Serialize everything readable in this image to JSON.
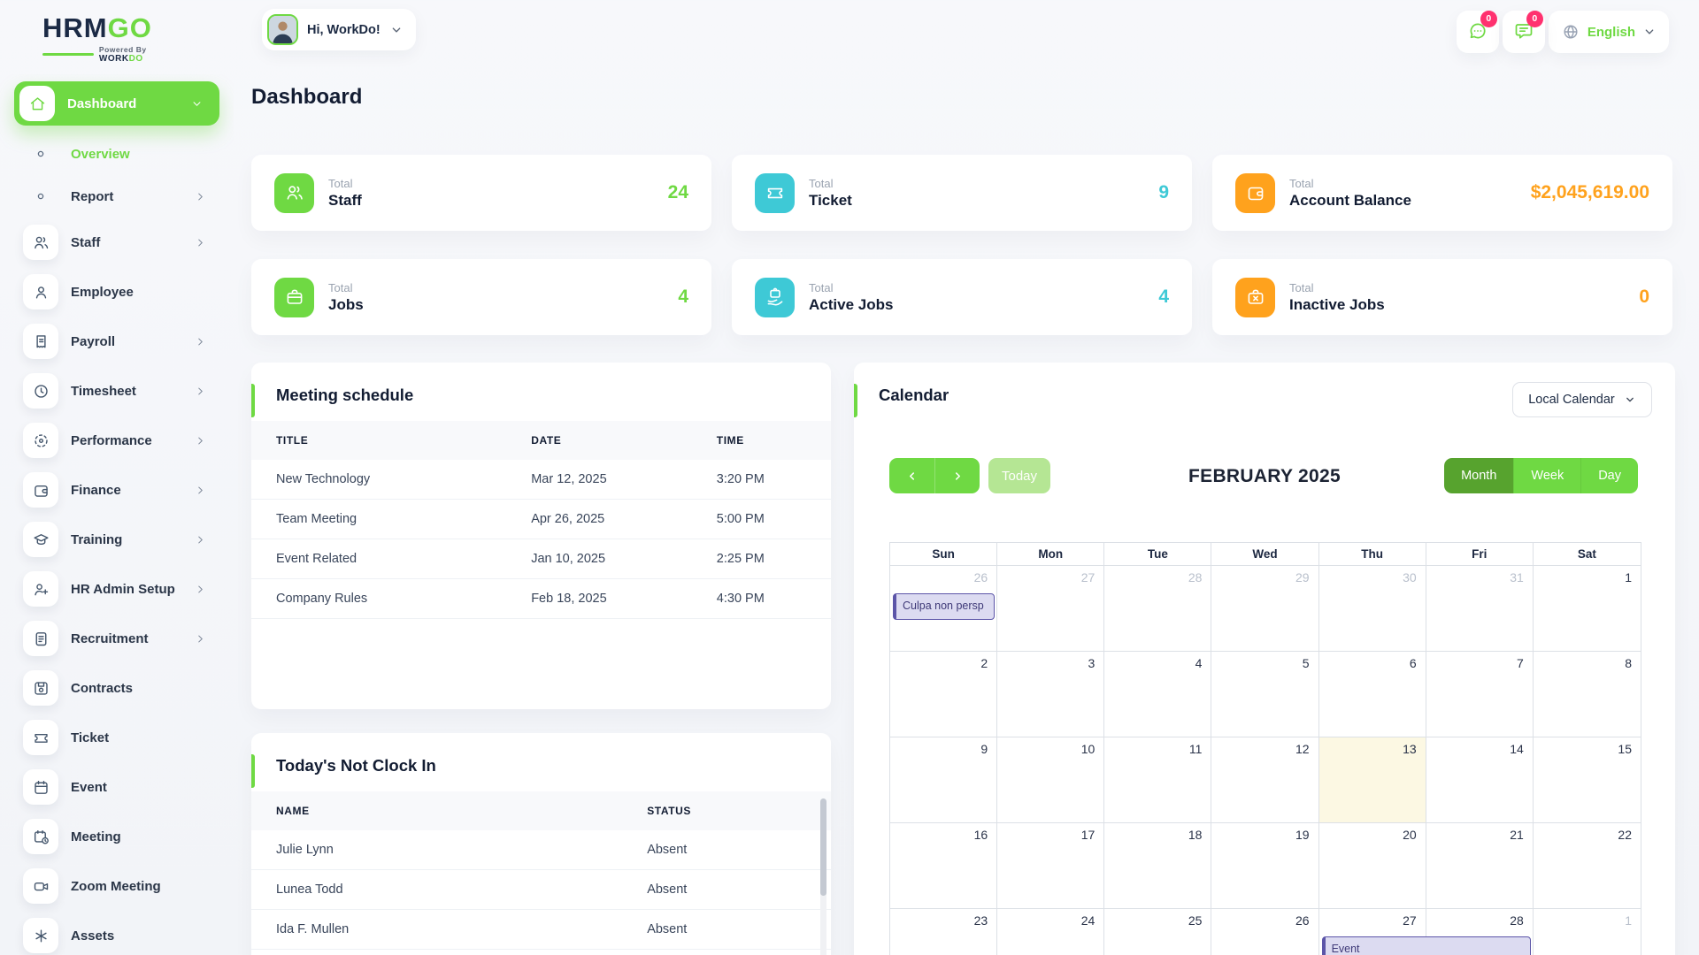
{
  "brand": {
    "hrm": "HRM",
    "go": "GO",
    "powered_by": "Powered By",
    "workdo_work": "WORK",
    "workdo_do": "DO"
  },
  "header": {
    "greeting": "Hi, WorkDo!",
    "language": "English",
    "chat_badge": "0",
    "mail_badge": "0"
  },
  "page": {
    "title": "Dashboard"
  },
  "sidebar": {
    "items": [
      {
        "label": "Dashboard",
        "icon": "home",
        "active": true,
        "chevron": "down"
      },
      {
        "label": "Overview",
        "icon": "dot",
        "sub": true,
        "selected": true
      },
      {
        "label": "Report",
        "icon": "dot",
        "sub": true,
        "chevron": "right"
      },
      {
        "label": "Staff",
        "icon": "users",
        "chevron": "right"
      },
      {
        "label": "Employee",
        "icon": "user"
      },
      {
        "label": "Payroll",
        "icon": "receipt",
        "chevron": "right"
      },
      {
        "label": "Timesheet",
        "icon": "clock",
        "chevron": "right"
      },
      {
        "label": "Performance",
        "icon": "target",
        "chevron": "right"
      },
      {
        "label": "Finance",
        "icon": "wallet",
        "chevron": "right"
      },
      {
        "label": "Training",
        "icon": "graduation-cap",
        "chevron": "right"
      },
      {
        "label": "HR Admin Setup",
        "icon": "user-plus",
        "chevron": "right"
      },
      {
        "label": "Recruitment",
        "icon": "scroll",
        "chevron": "right"
      },
      {
        "label": "Contracts",
        "icon": "floppy"
      },
      {
        "label": "Ticket",
        "icon": "ticket"
      },
      {
        "label": "Event",
        "icon": "calendar"
      },
      {
        "label": "Meeting",
        "icon": "calendar-clock"
      },
      {
        "label": "Zoom Meeting",
        "icon": "video"
      },
      {
        "label": "Assets",
        "icon": "asterisk"
      }
    ]
  },
  "stats": [
    {
      "prefix": "Total",
      "label": "Staff",
      "value": "24",
      "color": "#6fd943",
      "icon": "users"
    },
    {
      "prefix": "Total",
      "label": "Ticket",
      "value": "9",
      "color": "#3ec9d6",
      "icon": "ticket"
    },
    {
      "prefix": "Total",
      "label": "Account Balance",
      "value": "$2,045,619.00",
      "color": "#ffa21d",
      "icon": "wallet"
    },
    {
      "prefix": "Total",
      "label": "Jobs",
      "value": "4",
      "color": "#6fd943",
      "icon": "briefcase"
    },
    {
      "prefix": "Total",
      "label": "Active Jobs",
      "value": "4",
      "color": "#3ec9d6",
      "icon": "briefcase-hand"
    },
    {
      "prefix": "Total",
      "label": "Inactive Jobs",
      "value": "0",
      "color": "#ffa21d",
      "icon": "briefcase-x"
    }
  ],
  "meeting_schedule": {
    "title": "Meeting schedule",
    "columns": [
      "TITLE",
      "DATE",
      "TIME"
    ],
    "col_widths": [
      "44%",
      "32%",
      "24%"
    ],
    "rows": [
      [
        "New Technology",
        "Mar 12, 2025",
        "3:20 PM"
      ],
      [
        "Team Meeting",
        "Apr 26, 2025",
        "5:00 PM"
      ],
      [
        "Event Related",
        "Jan 10, 2025",
        "2:25 PM"
      ],
      [
        "Company Rules",
        "Feb 18, 2025",
        "4:30 PM"
      ]
    ]
  },
  "not_clock_in": {
    "title": "Today's Not Clock In",
    "columns": [
      "NAME",
      "STATUS"
    ],
    "col_widths": [
      "64%",
      "36%"
    ],
    "rows": [
      [
        "Julie Lynn",
        "Absent"
      ],
      [
        "Lunea Todd",
        "Absent"
      ],
      [
        "Ida F. Mullen",
        "Absent"
      ]
    ]
  },
  "calendar": {
    "title": "Calendar",
    "source_select": "Local Calendar",
    "today_label": "Today",
    "month_title": "FEBRUARY 2025",
    "views": [
      "Month",
      "Week",
      "Day"
    ],
    "active_view": "Month",
    "day_headers": [
      "Sun",
      "Mon",
      "Tue",
      "Wed",
      "Thu",
      "Fri",
      "Sat"
    ],
    "weeks": [
      [
        {
          "n": 26,
          "m": true
        },
        {
          "n": 27,
          "m": true
        },
        {
          "n": 28,
          "m": true
        },
        {
          "n": 29,
          "m": true
        },
        {
          "n": 30,
          "m": true
        },
        {
          "n": 31,
          "m": true
        },
        {
          "n": 1,
          "m": false
        }
      ],
      [
        {
          "n": 2,
          "m": false
        },
        {
          "n": 3,
          "m": false
        },
        {
          "n": 4,
          "m": false
        },
        {
          "n": 5,
          "m": false
        },
        {
          "n": 6,
          "m": false
        },
        {
          "n": 7,
          "m": false
        },
        {
          "n": 8,
          "m": false
        }
      ],
      [
        {
          "n": 9,
          "m": false
        },
        {
          "n": 10,
          "m": false
        },
        {
          "n": 11,
          "m": false
        },
        {
          "n": 12,
          "m": false
        },
        {
          "n": 13,
          "m": false
        },
        {
          "n": 14,
          "m": false
        },
        {
          "n": 15,
          "m": false
        }
      ],
      [
        {
          "n": 16,
          "m": false
        },
        {
          "n": 17,
          "m": false
        },
        {
          "n": 18,
          "m": false
        },
        {
          "n": 19,
          "m": false
        },
        {
          "n": 20,
          "m": false
        },
        {
          "n": 21,
          "m": false
        },
        {
          "n": 22,
          "m": false
        }
      ],
      [
        {
          "n": 23,
          "m": false
        },
        {
          "n": 24,
          "m": false
        },
        {
          "n": 25,
          "m": false
        },
        {
          "n": 26,
          "m": false
        },
        {
          "n": 27,
          "m": false
        },
        {
          "n": 28,
          "m": false
        },
        {
          "n": 1,
          "m": true
        }
      ]
    ],
    "today_cell": {
      "row": 2,
      "col": 4
    },
    "events": [
      {
        "label": "Culpa non persp",
        "row": 0,
        "col": 0,
        "span": 1
      },
      {
        "label": "Event",
        "row": 4,
        "col": 4,
        "span": 2
      }
    ],
    "event_color": "#5c55a8"
  }
}
